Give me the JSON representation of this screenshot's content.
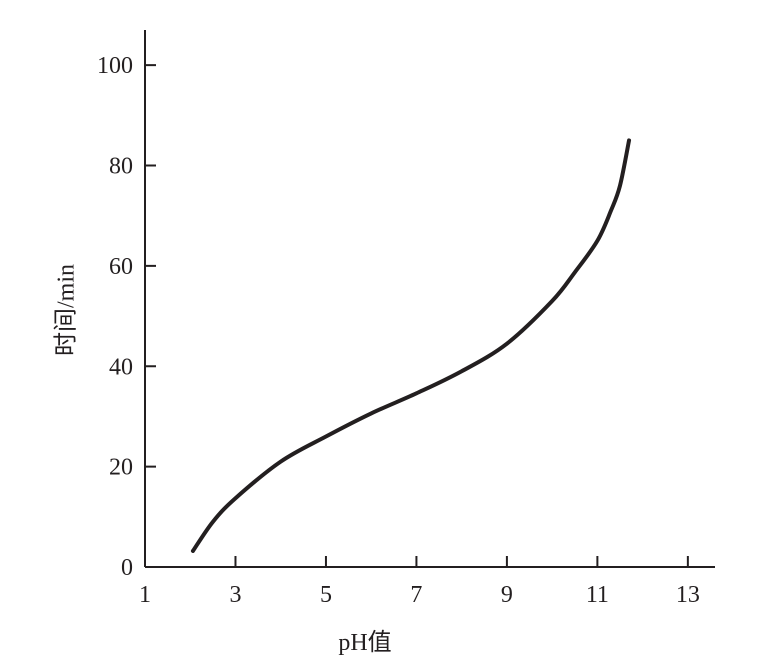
{
  "chart_data": {
    "type": "line",
    "xlabel": "pH值",
    "ylabel": "时间/min",
    "x": [
      2.06,
      2.5,
      3,
      4,
      5,
      6,
      7,
      8,
      9,
      10,
      10.5,
      11,
      11.3,
      11.5,
      11.7
    ],
    "series": [
      {
        "color": "#231f20",
        "values": [
          3.2,
          9,
          13.7,
          21,
          26,
          30.6,
          34.6,
          39,
          44.5,
          53,
          58.7,
          65,
          71,
          76,
          85
        ]
      }
    ],
    "xlim": [
      1,
      13.6
    ],
    "xticks": [
      1,
      3,
      5,
      7,
      9,
      11,
      13
    ],
    "ylim": [
      0,
      107
    ],
    "yticks": [
      0,
      20,
      40,
      60,
      80,
      100
    ]
  }
}
